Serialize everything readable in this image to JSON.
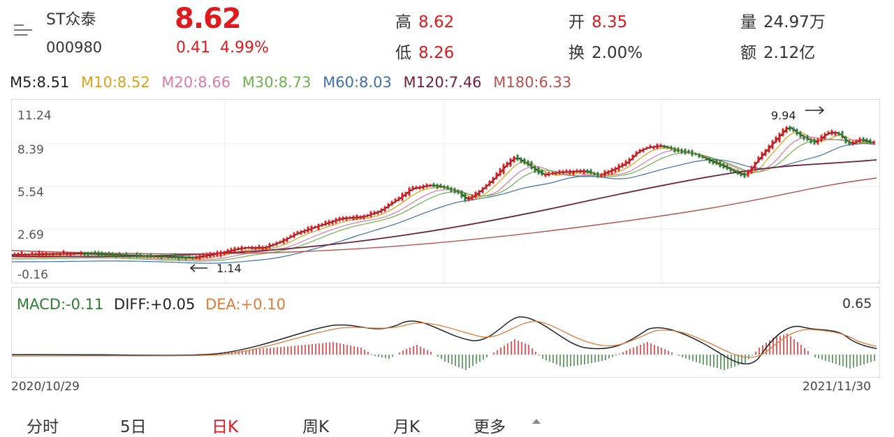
{
  "header": {
    "stock_name": "ST众泰",
    "stock_code": "000980",
    "price": "8.62",
    "change": "0.41",
    "change_pct": "4.99%",
    "high_label": "高",
    "high_value": "8.62",
    "low_label": "低",
    "low_value": "8.26",
    "open_label": "开",
    "open_value": "8.35",
    "turnover_label": "换",
    "turnover_value": "2.00%",
    "volume_label": "量",
    "volume_value": "24.97万",
    "amount_label": "额",
    "amount_value": "2.12亿",
    "up_color": "#e0191e"
  },
  "moving_averages": [
    {
      "label": "M5:8.51",
      "color": "#222222"
    },
    {
      "label": "M10:8.52",
      "color": "#d9a21b"
    },
    {
      "label": "M20:8.66",
      "color": "#d87aa5"
    },
    {
      "label": "M30:8.73",
      "color": "#6fb04f"
    },
    {
      "label": "M60:8.03",
      "color": "#3f6fa8"
    },
    {
      "label": "M120:7.46",
      "color": "#6b1f3a"
    },
    {
      "label": "M180:6.33",
      "color": "#b5524b"
    }
  ],
  "kline": {
    "y_labels": [
      "11.24",
      "8.39",
      "5.54",
      "2.69",
      "-0.16"
    ],
    "low_annotation": "1.14",
    "high_annotation": "9.94"
  },
  "macd": {
    "macd_label": "MACD:-0.11",
    "diff_label": "DIFF:+0.05",
    "dea_label": "DEA:+0.10",
    "max_label": "0.65",
    "macd_color": "#2e7d32",
    "diff_color": "#222222",
    "dea_color": "#e07a3a"
  },
  "dates": {
    "start": "2020/10/29",
    "end": "2021/11/30"
  },
  "tabs": [
    {
      "label": "分时"
    },
    {
      "label": "5日"
    },
    {
      "label": "日K"
    },
    {
      "label": "周K"
    },
    {
      "label": "月K"
    },
    {
      "label": "更多"
    }
  ]
}
